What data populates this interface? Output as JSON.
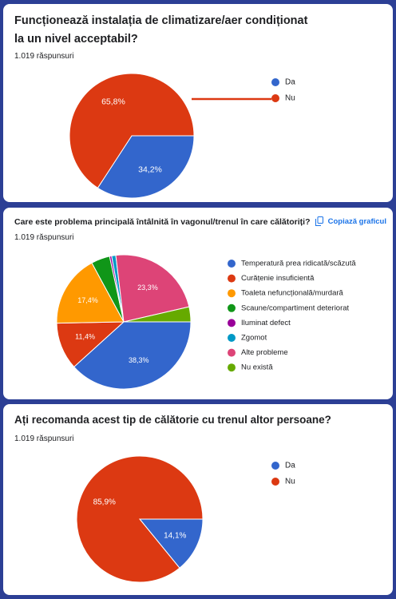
{
  "chart_data": [
    {
      "type": "pie",
      "title": "Funcționează instalația de climatizare/aer condiționat la un nivel acceptabil?",
      "subtitle": "1.019 răspunsuri",
      "categories": [
        "Da",
        "Nu"
      ],
      "values": [
        34.2,
        65.8
      ],
      "value_labels": [
        "34,2%",
        "65,8%"
      ],
      "colors": [
        "#3366cc",
        "#dc3912"
      ]
    },
    {
      "type": "pie",
      "title": "Care este problema principală întâlnită în vagonul/trenul în care călătoriți?",
      "subtitle": "1.019 răspunsuri",
      "action": "Copiază graficul",
      "categories": [
        "Temperatură prea ridicată/scăzută",
        "Curățenie insuficientă",
        "Toaleta nefuncțională/murdară",
        "Scaune/compartiment deteriorat",
        "Iluminat defect",
        "Zgomot",
        "Alte probleme",
        "Nu există"
      ],
      "values": [
        38.3,
        11.4,
        17.4,
        4.5,
        0.5,
        1,
        23.3,
        3.6
      ],
      "value_labels": [
        "38,3%",
        "11,4%",
        "17,4%",
        null,
        null,
        null,
        "23,3%",
        null
      ],
      "colors": [
        "#3366cc",
        "#dc3912",
        "#ff9900",
        "#109618",
        "#990099",
        "#0099c6",
        "#dd4477",
        "#66aa00"
      ]
    },
    {
      "type": "pie",
      "title": "Ați recomanda acest tip de călătorie cu trenul altor persoane?",
      "subtitle": "1.019 răspunsuri",
      "categories": [
        "Da",
        "Nu"
      ],
      "values": [
        14.1,
        85.9
      ],
      "value_labels": [
        "14,1%",
        "85,9%"
      ],
      "colors": [
        "#3366cc",
        "#dc3912"
      ]
    }
  ]
}
